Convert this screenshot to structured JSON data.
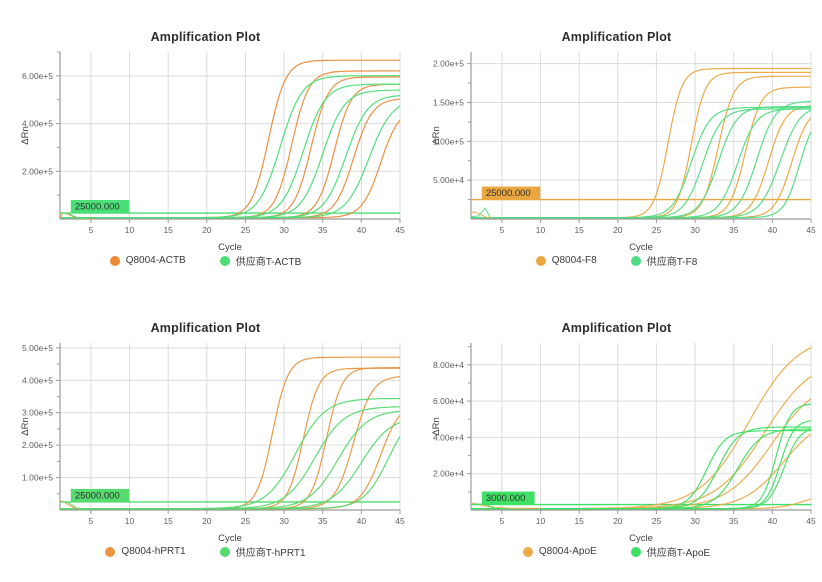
{
  "page": {
    "background": "#ffffff"
  },
  "chart_data": [
    {
      "type": "line",
      "title": "Amplification Plot",
      "xlabel": "Cycle",
      "ylabel": "ΔRn",
      "x_range": [
        1,
        45
      ],
      "x_ticks": [
        5,
        10,
        15,
        20,
        25,
        30,
        35,
        40,
        45
      ],
      "y_max": 700000,
      "y_ticks": [
        {
          "v": 200000,
          "label": "2.00e+5"
        },
        {
          "v": 400000,
          "label": "4.00e+5"
        },
        {
          "v": 600000,
          "label": "6.00e+5"
        }
      ],
      "grid": true,
      "colors": {
        "orange": "#EC8A3A",
        "green": "#4ADE77"
      },
      "threshold": {
        "value": 25000,
        "label": "25000.000",
        "color": "green"
      },
      "legend": [
        {
          "label": "Q8004-ACTB",
          "color": "orange"
        },
        {
          "label": "供应商T-ACTB",
          "color": "green"
        }
      ],
      "curves": [
        {
          "color": "orange",
          "ct": 28,
          "k": 1.1,
          "plateau": 660000
        },
        {
          "color": "orange",
          "ct": 31,
          "k": 1.1,
          "plateau": 615000
        },
        {
          "color": "orange",
          "ct": 33.5,
          "k": 1.1,
          "plateau": 590000
        },
        {
          "color": "orange",
          "ct": 36.5,
          "k": 1.1,
          "plateau": 560000
        },
        {
          "color": "orange",
          "ct": 39,
          "k": 1.2,
          "plateau": 500000
        },
        {
          "color": "orange",
          "ct": 42.5,
          "k": 1.2,
          "plateau": 460000
        },
        {
          "color": "green",
          "ct": 29.5,
          "k": 1.4,
          "plateau": 595000
        },
        {
          "color": "green",
          "ct": 32.5,
          "k": 1.4,
          "plateau": 560000
        },
        {
          "color": "green",
          "ct": 35,
          "k": 1.4,
          "plateau": 535000
        },
        {
          "color": "green",
          "ct": 38,
          "k": 1.4,
          "plateau": 515000
        },
        {
          "color": "green",
          "ct": 41,
          "k": 1.5,
          "plateau": 500000
        }
      ],
      "baseline_noise": [
        {
          "color": "orange",
          "points": [
            [
              1,
              4000
            ],
            [
              1.4,
              26000
            ],
            [
              2,
              21000
            ],
            [
              3,
              6000
            ],
            [
              4,
              1200
            ],
            [
              5,
              900
            ]
          ]
        },
        {
          "color": "green",
          "points": [
            [
              1,
              26000
            ],
            [
              2,
              24000
            ],
            [
              3.5,
              1500
            ],
            [
              4.5,
              900
            ]
          ]
        }
      ]
    },
    {
      "type": "line",
      "title": "Amplification Plot",
      "xlabel": "Cycle",
      "ylabel": "ΔRn",
      "x_range": [
        1,
        45
      ],
      "x_ticks": [
        5,
        10,
        15,
        20,
        25,
        30,
        35,
        40,
        45
      ],
      "y_max": 215000,
      "y_ticks": [
        {
          "v": 50000,
          "label": "5.00e+4"
        },
        {
          "v": 100000,
          "label": "1.00e+5"
        },
        {
          "v": 150000,
          "label": "1.50e+5"
        },
        {
          "v": 200000,
          "label": "2.00e+5"
        }
      ],
      "grid": true,
      "colors": {
        "orange": "#EBA73F",
        "green": "#52DC83"
      },
      "threshold": {
        "value": 25000,
        "label": "25000.000",
        "color": "orange"
      },
      "legend": [
        {
          "label": "Q8004-F8",
          "color": "orange"
        },
        {
          "label": "供应商T-F8",
          "color": "green"
        }
      ],
      "curves": [
        {
          "color": "orange",
          "ct": 26.5,
          "k": 0.9,
          "plateau": 192000
        },
        {
          "color": "orange",
          "ct": 29.5,
          "k": 0.9,
          "plateau": 187000
        },
        {
          "color": "orange",
          "ct": 33,
          "k": 1.0,
          "plateau": 182000
        },
        {
          "color": "orange",
          "ct": 36.5,
          "k": 1.0,
          "plateau": 168000
        },
        {
          "color": "orange",
          "ct": 39.5,
          "k": 1.1,
          "plateau": 145000
        },
        {
          "color": "orange",
          "ct": 42.5,
          "k": 1.1,
          "plateau": 142000
        },
        {
          "color": "green",
          "ct": 29.5,
          "k": 1.2,
          "plateau": 142000
        },
        {
          "color": "green",
          "ct": 31,
          "k": 1.2,
          "plateau": 140000
        },
        {
          "color": "green",
          "ct": 33,
          "k": 1.2,
          "plateau": 143000
        },
        {
          "color": "green",
          "ct": 35.5,
          "k": 1.2,
          "plateau": 140000
        },
        {
          "color": "green",
          "ct": 38,
          "k": 1.2,
          "plateau": 150000
        },
        {
          "color": "green",
          "ct": 41,
          "k": 1.3,
          "plateau": 145000
        },
        {
          "color": "green",
          "ct": 43.5,
          "k": 1.0,
          "plateau": 135000
        }
      ],
      "baseline_noise": [
        {
          "color": "orange",
          "points": [
            [
              1,
              8000
            ],
            [
              1.5,
              9000
            ],
            [
              2,
              7000
            ],
            [
              3,
              2000
            ],
            [
              4,
              1000
            ]
          ]
        },
        {
          "color": "green",
          "points": [
            [
              1,
              3000
            ],
            [
              2,
              4000
            ],
            [
              2.8,
              14000
            ],
            [
              3.5,
              2000
            ],
            [
              4.5,
              900
            ]
          ]
        }
      ]
    },
    {
      "type": "line",
      "title": "Amplification Plot",
      "xlabel": "Cycle",
      "ylabel": "ΔRn",
      "x_range": [
        1,
        45
      ],
      "x_ticks": [
        5,
        10,
        15,
        20,
        25,
        30,
        35,
        40,
        45
      ],
      "y_max": 515000,
      "y_ticks": [
        {
          "v": 100000,
          "label": "1.00e+5"
        },
        {
          "v": 200000,
          "label": "2.00e+5"
        },
        {
          "v": 300000,
          "label": "3.00e+5"
        },
        {
          "v": 400000,
          "label": "4.00e+5"
        },
        {
          "v": 500000,
          "label": "5.00e+5"
        }
      ],
      "grid": true,
      "colors": {
        "orange": "#E8953F",
        "green": "#55DB6E"
      },
      "threshold": {
        "value": 25000,
        "label": "25000.000",
        "color": "green"
      },
      "legend": [
        {
          "label": "Q8004-hPRT1",
          "color": "orange"
        },
        {
          "label": "供应商T-hPRT1",
          "color": "green"
        }
      ],
      "curves": [
        {
          "color": "orange",
          "ct": 28.5,
          "k": 1.0,
          "plateau": 467000
        },
        {
          "color": "orange",
          "ct": 32.5,
          "k": 1.0,
          "plateau": 433000
        },
        {
          "color": "orange",
          "ct": 35.5,
          "k": 1.0,
          "plateau": 435000
        },
        {
          "color": "orange",
          "ct": 39,
          "k": 1.2,
          "plateau": 410000
        },
        {
          "color": "orange",
          "ct": 42.5,
          "k": 1.3,
          "plateau": 330000
        },
        {
          "color": "green",
          "ct": 31.5,
          "k": 1.9,
          "plateau": 340000
        },
        {
          "color": "green",
          "ct": 34,
          "k": 1.9,
          "plateau": 315000
        },
        {
          "color": "green",
          "ct": 37,
          "k": 1.9,
          "plateau": 305000
        },
        {
          "color": "green",
          "ct": 40,
          "k": 1.9,
          "plateau": 285000
        },
        {
          "color": "green",
          "ct": 43.5,
          "k": 1.6,
          "plateau": 310000
        }
      ],
      "baseline_noise": [
        {
          "color": "orange",
          "points": [
            [
              1,
              28000
            ],
            [
              1.5,
              26000
            ],
            [
              2,
              18000
            ],
            [
              3,
              4000
            ],
            [
              4,
              900
            ]
          ]
        },
        {
          "color": "green",
          "points": [
            [
              1,
              25000
            ],
            [
              2,
              24000
            ],
            [
              3.5,
              1500
            ],
            [
              4.5,
              800
            ]
          ]
        }
      ]
    },
    {
      "type": "line",
      "title": "Amplification Plot",
      "xlabel": "Cycle",
      "ylabel": "ΔRn",
      "x_range": [
        1,
        45
      ],
      "x_ticks": [
        5,
        10,
        15,
        20,
        25,
        30,
        35,
        40,
        45
      ],
      "y_max": 92000,
      "y_ticks": [
        {
          "v": 20000,
          "label": "2.00e+4"
        },
        {
          "v": 40000,
          "label": "4.00e+4"
        },
        {
          "v": 60000,
          "label": "6.00e+4"
        },
        {
          "v": 80000,
          "label": "8.00e+4"
        }
      ],
      "grid": true,
      "colors": {
        "orange": "#EAAB48",
        "green": "#3FE066"
      },
      "threshold": {
        "value": 3000,
        "label": "3000.000",
        "color": "green"
      },
      "legend": [
        {
          "label": "Q8004-ApoE",
          "color": "orange"
        },
        {
          "label": "供应商T-ApoE",
          "color": "green"
        }
      ],
      "curves": [
        {
          "color": "orange",
          "ct": 37,
          "k": 3.2,
          "plateau": 96000
        },
        {
          "color": "orange",
          "ct": 39,
          "k": 3.2,
          "plateau": 84000
        },
        {
          "color": "orange",
          "ct": 40,
          "k": 3.0,
          "plateau": 72000
        },
        {
          "color": "orange",
          "ct": 41.5,
          "k": 2.6,
          "plateau": 52000
        },
        {
          "color": "orange",
          "ct": 44,
          "k": 1.5,
          "plateau": 8000
        },
        {
          "color": "green",
          "ct": 31.5,
          "k": 1.2,
          "plateau": 43000
        },
        {
          "color": "green",
          "ct": 33,
          "k": 1.3,
          "plateau": 45000
        },
        {
          "color": "green",
          "ct": 35.5,
          "k": 1.5,
          "plateau": 44000
        },
        {
          "color": "green",
          "ct": 40.5,
          "k": 0.9,
          "plateau": 58000
        },
        {
          "color": "green",
          "ct": 41,
          "k": 0.9,
          "plateau": 49000
        },
        {
          "color": "green",
          "ct": 41.5,
          "k": 1.0,
          "plateau": 45000
        }
      ],
      "baseline_noise": [
        {
          "color": "orange",
          "points": [
            [
              1,
              4000
            ],
            [
              1.5,
              3600
            ],
            [
              2.5,
              2500
            ],
            [
              4,
              1500
            ],
            [
              6,
              1000
            ],
            [
              10,
              800
            ]
          ]
        },
        {
          "color": "green",
          "points": [
            [
              1,
              3000
            ],
            [
              2,
              3300
            ],
            [
              3,
              2800
            ],
            [
              4,
              1000
            ],
            [
              5,
              800
            ]
          ]
        }
      ]
    }
  ]
}
